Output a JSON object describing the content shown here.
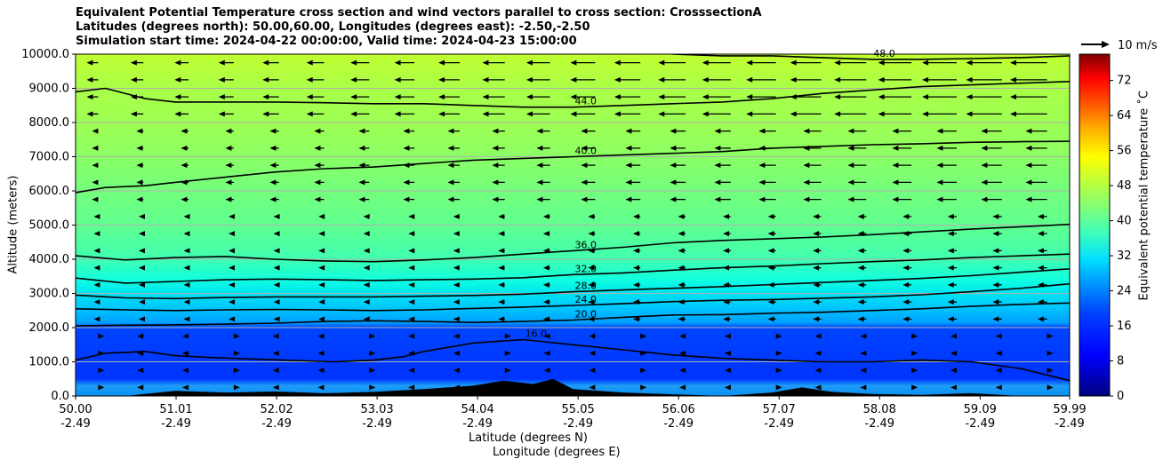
{
  "chart_data": {
    "type": "heatmap",
    "title_lines": [
      "Equivalent Potential Temperature cross section and wind vectors parallel to cross section: CrosssectionA",
      "Latitudes (degrees north): 50.00,60.00, Longitudes (degrees east): -2.50,-2.50",
      "Simulation start time: 2024-04-22 00:00:00, Valid time: 2024-04-23 15:00:00"
    ],
    "ylabel": "Altitude (meters)",
    "xlabel_lat": "Latitude (degrees N)",
    "xlabel_lon": "Longitude (degrees E)",
    "ylim": [
      0,
      10000
    ],
    "xlim": [
      50.0,
      59.99
    ],
    "y_ticks": [
      "0.0",
      "1000.0",
      "2000.0",
      "3000.0",
      "4000.0",
      "5000.0",
      "6000.0",
      "7000.0",
      "8000.0",
      "9000.0",
      "10000.0"
    ],
    "x_ticks": [
      {
        "lat": "50.00",
        "lon": "-2.49"
      },
      {
        "lat": "51.01",
        "lon": "-2.49"
      },
      {
        "lat": "52.02",
        "lon": "-2.49"
      },
      {
        "lat": "53.03",
        "lon": "-2.49"
      },
      {
        "lat": "54.04",
        "lon": "-2.49"
      },
      {
        "lat": "55.05",
        "lon": "-2.49"
      },
      {
        "lat": "56.06",
        "lon": "-2.49"
      },
      {
        "lat": "57.07",
        "lon": "-2.49"
      },
      {
        "lat": "58.08",
        "lon": "-2.49"
      },
      {
        "lat": "59.09",
        "lon": "-2.49"
      },
      {
        "lat": "59.99",
        "lon": "-2.49"
      }
    ],
    "grid": "horizontal",
    "colorbar": {
      "label": "Equivalent potential temperature ˚C",
      "range": [
        0,
        78
      ],
      "ticks": [
        "0",
        "8",
        "16",
        "24",
        "32",
        "40",
        "48",
        "56",
        "64",
        "72"
      ]
    },
    "wind_key": {
      "label": "10 m/s"
    },
    "contours": [
      {
        "level": 16.0,
        "label": "16.0",
        "points": [
          [
            50.0,
            1050
          ],
          [
            50.3,
            1250
          ],
          [
            50.7,
            1300
          ],
          [
            51.0,
            1180
          ],
          [
            51.4,
            1120
          ],
          [
            51.8,
            1080
          ],
          [
            52.2,
            1040
          ],
          [
            52.6,
            1000
          ],
          [
            53.0,
            1050
          ],
          [
            53.3,
            1150
          ],
          [
            53.5,
            1300
          ],
          [
            54.0,
            1550
          ],
          [
            54.5,
            1650
          ],
          [
            55.0,
            1500
          ],
          [
            55.5,
            1350
          ],
          [
            56.0,
            1200
          ],
          [
            56.5,
            1100
          ],
          [
            57.0,
            1050
          ],
          [
            57.5,
            1000
          ],
          [
            58.0,
            1000
          ],
          [
            58.5,
            1050
          ],
          [
            59.0,
            1000
          ],
          [
            59.5,
            800
          ],
          [
            59.99,
            450
          ]
        ]
      },
      {
        "level": 20.0,
        "label": "20.0",
        "points": [
          [
            50.0,
            2050
          ],
          [
            50.5,
            2070
          ],
          [
            51.0,
            2080
          ],
          [
            51.5,
            2100
          ],
          [
            52.0,
            2130
          ],
          [
            52.5,
            2180
          ],
          [
            53.0,
            2200
          ],
          [
            53.5,
            2180
          ],
          [
            54.0,
            2150
          ],
          [
            54.5,
            2180
          ],
          [
            55.0,
            2220
          ],
          [
            55.5,
            2300
          ],
          [
            56.0,
            2370
          ],
          [
            56.5,
            2380
          ],
          [
            57.0,
            2420
          ],
          [
            57.5,
            2450
          ],
          [
            58.0,
            2500
          ],
          [
            58.5,
            2550
          ],
          [
            59.0,
            2620
          ],
          [
            59.5,
            2680
          ],
          [
            59.99,
            2720
          ]
        ]
      },
      {
        "level": 24.0,
        "label": "24.0",
        "points": [
          [
            50.0,
            2550
          ],
          [
            50.5,
            2520
          ],
          [
            51.0,
            2500
          ],
          [
            51.5,
            2520
          ],
          [
            52.0,
            2530
          ],
          [
            52.5,
            2520
          ],
          [
            53.0,
            2500
          ],
          [
            53.5,
            2520
          ],
          [
            54.0,
            2560
          ],
          [
            54.5,
            2600
          ],
          [
            55.0,
            2650
          ],
          [
            55.5,
            2700
          ],
          [
            56.0,
            2760
          ],
          [
            56.5,
            2800
          ],
          [
            57.0,
            2820
          ],
          [
            57.5,
            2860
          ],
          [
            58.0,
            2900
          ],
          [
            58.5,
            2960
          ],
          [
            59.0,
            3050
          ],
          [
            59.5,
            3150
          ],
          [
            59.99,
            3280
          ]
        ]
      },
      {
        "level": 28.0,
        "label": "28.0",
        "points": [
          [
            50.0,
            2950
          ],
          [
            50.5,
            2870
          ],
          [
            51.0,
            2850
          ],
          [
            51.5,
            2880
          ],
          [
            52.0,
            2900
          ],
          [
            52.5,
            2900
          ],
          [
            53.0,
            2900
          ],
          [
            53.5,
            2920
          ],
          [
            54.0,
            2940
          ],
          [
            54.5,
            2980
          ],
          [
            55.0,
            3050
          ],
          [
            55.5,
            3100
          ],
          [
            56.0,
            3150
          ],
          [
            56.5,
            3200
          ],
          [
            57.0,
            3260
          ],
          [
            57.5,
            3320
          ],
          [
            58.0,
            3380
          ],
          [
            58.5,
            3440
          ],
          [
            59.0,
            3520
          ],
          [
            59.5,
            3620
          ],
          [
            59.99,
            3720
          ]
        ]
      },
      {
        "level": 32.0,
        "label": "32.0",
        "points": [
          [
            50.0,
            3450
          ],
          [
            50.5,
            3300
          ],
          [
            51.0,
            3350
          ],
          [
            51.5,
            3400
          ],
          [
            52.0,
            3420
          ],
          [
            52.5,
            3400
          ],
          [
            53.0,
            3380
          ],
          [
            53.5,
            3400
          ],
          [
            54.0,
            3420
          ],
          [
            54.5,
            3460
          ],
          [
            55.0,
            3550
          ],
          [
            55.5,
            3600
          ],
          [
            56.0,
            3680
          ],
          [
            56.5,
            3750
          ],
          [
            57.0,
            3800
          ],
          [
            57.5,
            3870
          ],
          [
            58.0,
            3930
          ],
          [
            58.5,
            3980
          ],
          [
            59.0,
            4050
          ],
          [
            59.5,
            4100
          ],
          [
            59.99,
            4150
          ]
        ]
      },
      {
        "level": 36.0,
        "label": "36.0",
        "points": [
          [
            50.0,
            4100
          ],
          [
            50.5,
            3980
          ],
          [
            51.0,
            4050
          ],
          [
            51.5,
            4080
          ],
          [
            52.0,
            4000
          ],
          [
            52.5,
            3950
          ],
          [
            53.0,
            3930
          ],
          [
            53.5,
            3980
          ],
          [
            54.0,
            4050
          ],
          [
            54.5,
            4150
          ],
          [
            55.0,
            4250
          ],
          [
            55.5,
            4350
          ],
          [
            56.0,
            4480
          ],
          [
            56.5,
            4550
          ],
          [
            57.0,
            4600
          ],
          [
            57.5,
            4650
          ],
          [
            58.0,
            4720
          ],
          [
            58.5,
            4800
          ],
          [
            59.0,
            4880
          ],
          [
            59.5,
            4950
          ],
          [
            59.99,
            5020
          ]
        ]
      },
      {
        "level": 40.0,
        "label": "40.0",
        "points": [
          [
            50.0,
            5950
          ],
          [
            50.3,
            6100
          ],
          [
            50.7,
            6150
          ],
          [
            51.0,
            6250
          ],
          [
            51.5,
            6400
          ],
          [
            52.0,
            6550
          ],
          [
            52.5,
            6650
          ],
          [
            53.0,
            6700
          ],
          [
            53.5,
            6800
          ],
          [
            54.0,
            6900
          ],
          [
            54.5,
            6950
          ],
          [
            55.0,
            7000
          ],
          [
            55.5,
            7050
          ],
          [
            56.0,
            7100
          ],
          [
            56.5,
            7150
          ],
          [
            57.0,
            7250
          ],
          [
            57.5,
            7300
          ],
          [
            58.0,
            7350
          ],
          [
            58.5,
            7380
          ],
          [
            59.0,
            7420
          ],
          [
            59.5,
            7440
          ],
          [
            59.99,
            7450
          ]
        ]
      },
      {
        "level": 44.0,
        "label": "44.0",
        "points": [
          [
            50.0,
            8900
          ],
          [
            50.3,
            9000
          ],
          [
            50.7,
            8700
          ],
          [
            51.0,
            8600
          ],
          [
            51.5,
            8600
          ],
          [
            52.0,
            8600
          ],
          [
            52.5,
            8580
          ],
          [
            53.0,
            8550
          ],
          [
            53.5,
            8550
          ],
          [
            54.0,
            8500
          ],
          [
            54.5,
            8450
          ],
          [
            55.0,
            8450
          ],
          [
            55.5,
            8500
          ],
          [
            56.0,
            8550
          ],
          [
            56.5,
            8600
          ],
          [
            57.0,
            8700
          ],
          [
            57.5,
            8850
          ],
          [
            58.0,
            8950
          ],
          [
            58.5,
            9050
          ],
          [
            59.0,
            9100
          ],
          [
            59.5,
            9150
          ],
          [
            59.99,
            9200
          ]
        ]
      },
      {
        "level": 48.0,
        "label": "48.0",
        "points": [
          [
            56.0,
            10000
          ],
          [
            56.5,
            9950
          ],
          [
            57.0,
            9950
          ],
          [
            57.5,
            9900
          ],
          [
            58.0,
            9850
          ],
          [
            58.5,
            9850
          ],
          [
            59.0,
            9870
          ],
          [
            59.5,
            9900
          ],
          [
            59.99,
            9950
          ]
        ]
      }
    ],
    "terrain": [
      [
        50.0,
        0
      ],
      [
        50.5,
        0
      ],
      [
        51.0,
        150
      ],
      [
        51.5,
        100
      ],
      [
        52.0,
        130
      ],
      [
        52.5,
        80
      ],
      [
        53.0,
        120
      ],
      [
        53.5,
        200
      ],
      [
        54.0,
        300
      ],
      [
        54.3,
        450
      ],
      [
        54.6,
        350
      ],
      [
        54.8,
        500
      ],
      [
        55.0,
        200
      ],
      [
        55.5,
        100
      ],
      [
        56.0,
        50
      ],
      [
        56.5,
        0
      ],
      [
        57.0,
        100
      ],
      [
        57.3,
        250
      ],
      [
        57.6,
        120
      ],
      [
        58.0,
        60
      ],
      [
        58.5,
        30
      ],
      [
        59.0,
        80
      ],
      [
        59.5,
        0
      ],
      [
        59.99,
        0
      ]
    ]
  }
}
